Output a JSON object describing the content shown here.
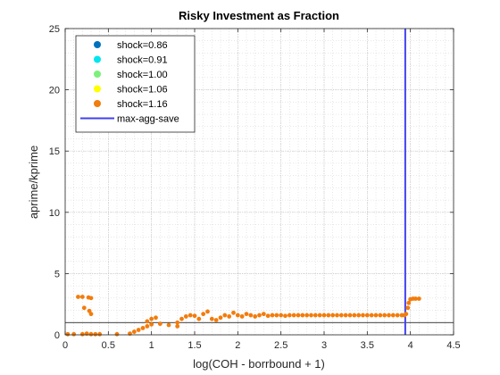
{
  "chart_data": {
    "type": "scatter",
    "title": "Risky Investment as Fraction",
    "xlabel": "log(COH - borrbound + 1)",
    "ylabel": "aprime/kprime",
    "xlim": [
      0,
      4.5
    ],
    "ylim": [
      0,
      25
    ],
    "xticks": [
      "0",
      "0.5",
      "1",
      "1.5",
      "2",
      "2.5",
      "3",
      "3.5",
      "4",
      "4.5"
    ],
    "yticks": [
      "0",
      "5",
      "10",
      "15",
      "20",
      "25"
    ],
    "grid": true,
    "minor_grid": true,
    "legend_position": "top-left",
    "series": [
      {
        "name": "shock=0.86",
        "color": "#0072BD",
        "marker": "dot",
        "points": []
      },
      {
        "name": "shock=0.91",
        "color": "#00E5EE",
        "marker": "dot",
        "points": []
      },
      {
        "name": "shock=1.00",
        "color": "#7CF07C",
        "marker": "dot",
        "points": []
      },
      {
        "name": "shock=1.06",
        "color": "#FFFF00",
        "marker": "dot",
        "points": []
      },
      {
        "name": "shock=1.16",
        "color": "#F27C0C",
        "marker": "dot",
        "points": [
          [
            0.15,
            3.1
          ],
          [
            0.2,
            3.1
          ],
          [
            0.27,
            3.05
          ],
          [
            0.3,
            3.0
          ],
          [
            0.22,
            2.2
          ],
          [
            0.28,
            1.95
          ],
          [
            0.3,
            1.7
          ],
          [
            0.03,
            0.05
          ],
          [
            0.1,
            0.05
          ],
          [
            0.2,
            0.05
          ],
          [
            0.3,
            0.05
          ],
          [
            0.35,
            0.05
          ],
          [
            0.4,
            0.05
          ],
          [
            0.25,
            0.1
          ],
          [
            0.6,
            0.05
          ],
          [
            0.75,
            0.1
          ],
          [
            0.8,
            0.25
          ],
          [
            0.85,
            0.4
          ],
          [
            0.9,
            0.55
          ],
          [
            0.95,
            0.7
          ],
          [
            1.0,
            0.85
          ],
          [
            1.1,
            0.9
          ],
          [
            1.2,
            0.8
          ],
          [
            1.3,
            0.7
          ],
          [
            0.95,
            1.1
          ],
          [
            1.0,
            1.3
          ],
          [
            1.05,
            1.4
          ],
          [
            1.3,
            1.0
          ],
          [
            1.35,
            1.3
          ],
          [
            1.4,
            1.5
          ],
          [
            1.45,
            1.6
          ],
          [
            1.5,
            1.55
          ],
          [
            1.55,
            1.3
          ],
          [
            1.6,
            1.7
          ],
          [
            1.65,
            1.9
          ],
          [
            1.7,
            1.3
          ],
          [
            1.75,
            1.2
          ],
          [
            1.8,
            1.4
          ],
          [
            1.85,
            1.6
          ],
          [
            1.9,
            1.5
          ],
          [
            1.95,
            1.8
          ],
          [
            2.0,
            1.6
          ],
          [
            2.05,
            1.5
          ],
          [
            2.1,
            1.7
          ],
          [
            2.15,
            1.6
          ],
          [
            2.2,
            1.5
          ],
          [
            2.25,
            1.6
          ],
          [
            2.3,
            1.7
          ],
          [
            2.35,
            1.55
          ],
          [
            2.4,
            1.6
          ],
          [
            2.45,
            1.6
          ],
          [
            2.5,
            1.6
          ],
          [
            2.55,
            1.55
          ],
          [
            2.6,
            1.6
          ],
          [
            2.65,
            1.6
          ],
          [
            2.7,
            1.6
          ],
          [
            2.75,
            1.6
          ],
          [
            2.8,
            1.6
          ],
          [
            2.85,
            1.6
          ],
          [
            2.9,
            1.6
          ],
          [
            2.95,
            1.6
          ],
          [
            3.0,
            1.6
          ],
          [
            3.05,
            1.6
          ],
          [
            3.1,
            1.6
          ],
          [
            3.15,
            1.6
          ],
          [
            3.2,
            1.6
          ],
          [
            3.25,
            1.6
          ],
          [
            3.3,
            1.6
          ],
          [
            3.35,
            1.6
          ],
          [
            3.4,
            1.6
          ],
          [
            3.45,
            1.6
          ],
          [
            3.5,
            1.6
          ],
          [
            3.55,
            1.6
          ],
          [
            3.6,
            1.6
          ],
          [
            3.65,
            1.6
          ],
          [
            3.7,
            1.6
          ],
          [
            3.75,
            1.6
          ],
          [
            3.8,
            1.6
          ],
          [
            3.85,
            1.6
          ],
          [
            3.9,
            1.6
          ],
          [
            3.93,
            1.6
          ],
          [
            3.95,
            1.7
          ],
          [
            3.97,
            2.2
          ],
          [
            3.98,
            2.6
          ],
          [
            4.0,
            2.9
          ],
          [
            4.03,
            2.95
          ],
          [
            4.06,
            2.95
          ],
          [
            4.1,
            2.95
          ]
        ]
      },
      {
        "name": "max-agg-save",
        "color": "#4040F0",
        "marker": "line",
        "x_vertical": 3.94
      }
    ],
    "reference_line": {
      "y": 1,
      "color": "#000000"
    }
  }
}
